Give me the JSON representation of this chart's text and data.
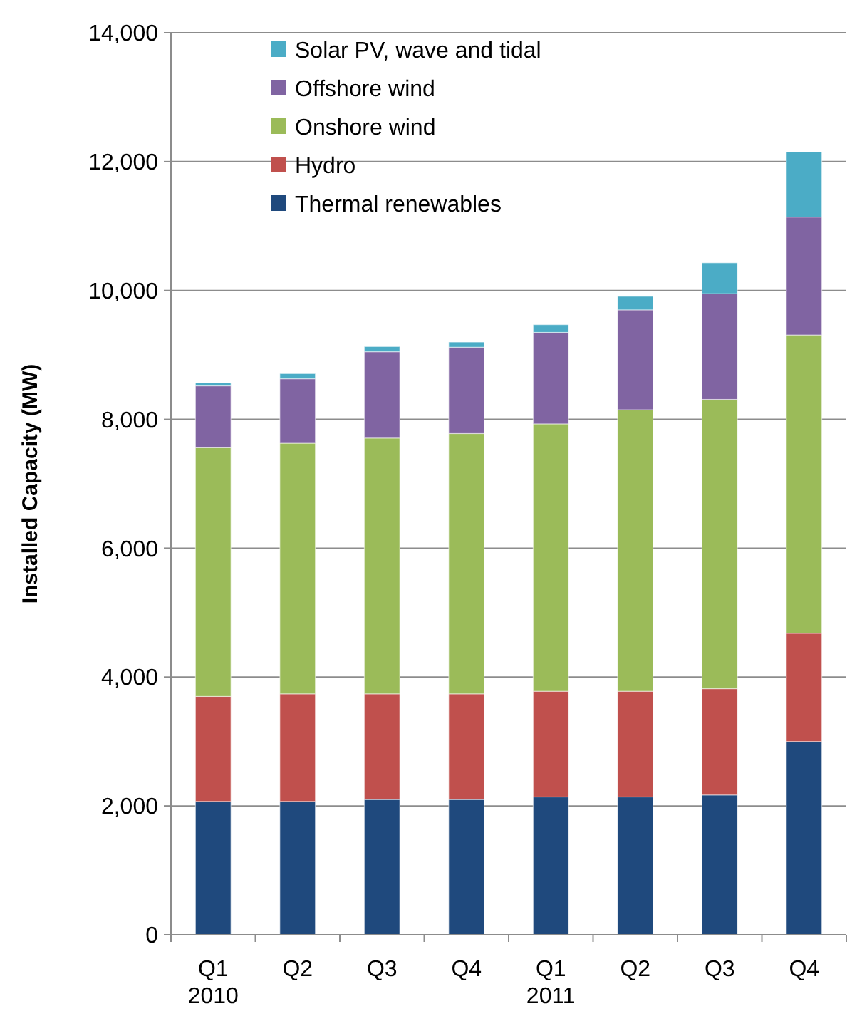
{
  "chart_data": {
    "type": "bar",
    "stacked": true,
    "ylabel": "Installed Capacity (MW)",
    "categories": [
      "Q1\n2010",
      "Q2",
      "Q3",
      "Q4",
      "Q1\n2011",
      "Q2",
      "Q3",
      "Q4"
    ],
    "series": [
      {
        "name": "Thermal renewables",
        "color": "#1f497d",
        "values": [
          2070,
          2070,
          2100,
          2100,
          2140,
          2140,
          2170,
          3000
        ]
      },
      {
        "name": "Hydro",
        "color": "#c0504d",
        "values": [
          1630,
          1670,
          1640,
          1640,
          1640,
          1640,
          1650,
          1680
        ]
      },
      {
        "name": "Onshore wind",
        "color": "#9bbb59",
        "values": [
          3860,
          3890,
          3970,
          4040,
          4150,
          4370,
          4490,
          4630
        ]
      },
      {
        "name": "Offshore wind",
        "color": "#8064a2",
        "values": [
          960,
          1000,
          1340,
          1340,
          1420,
          1550,
          1640,
          1830
        ]
      },
      {
        "name": "Solar PV, wave and tidal",
        "color": "#4bacc6",
        "values": [
          50,
          80,
          80,
          80,
          120,
          210,
          480,
          1010
        ]
      }
    ],
    "ylim": [
      0,
      14000
    ],
    "yticks": [
      {
        "value": 0,
        "label": "0"
      },
      {
        "value": 2000,
        "label": "2,000"
      },
      {
        "value": 4000,
        "label": "4,000"
      },
      {
        "value": 6000,
        "label": "6,000"
      },
      {
        "value": 8000,
        "label": "8,000"
      },
      {
        "value": 10000,
        "label": "10,000"
      },
      {
        "value": 12000,
        "label": "12,000"
      },
      {
        "value": 14000,
        "label": "14,000"
      }
    ],
    "grid": "y",
    "legend": "top left"
  }
}
